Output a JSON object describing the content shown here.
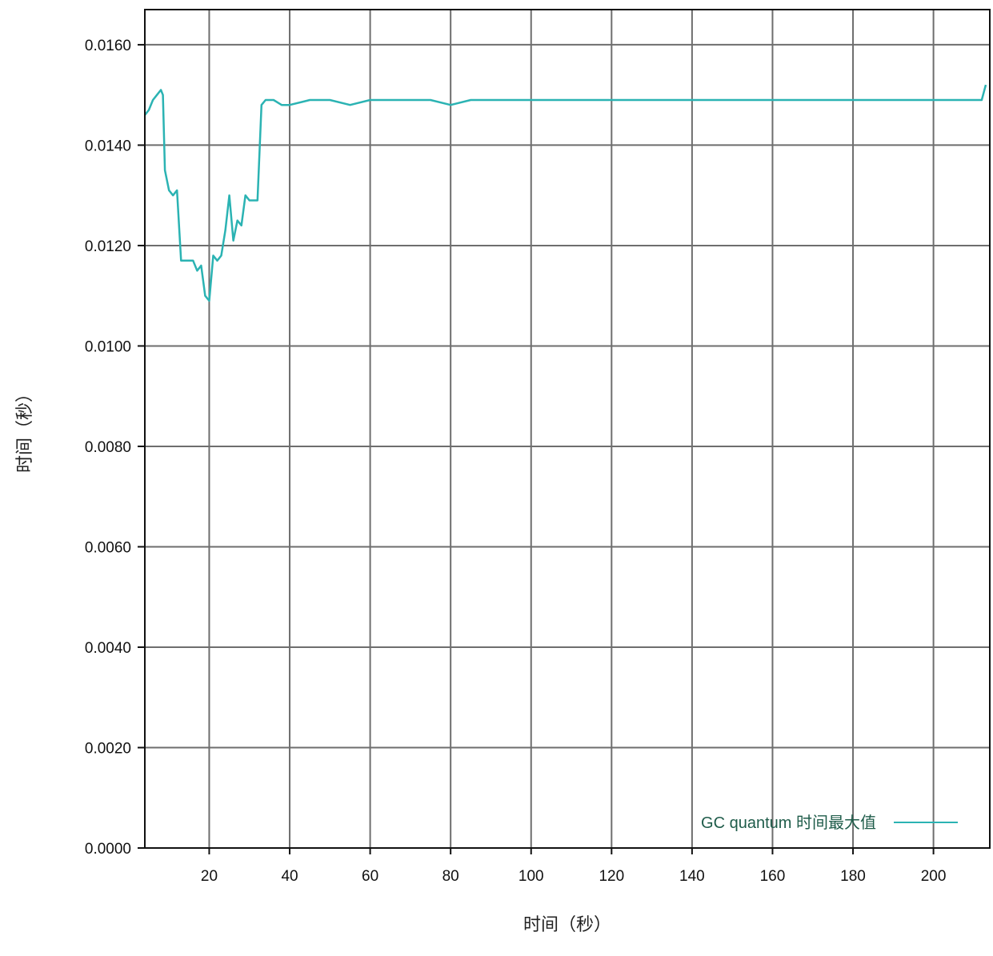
{
  "chart_data": {
    "type": "line",
    "title": "",
    "xlabel": "时间（秒）",
    "ylabel": "时间（秒）",
    "xlim": [
      4,
      214
    ],
    "ylim": [
      0,
      0.0167
    ],
    "x_ticks": [
      20,
      40,
      60,
      80,
      100,
      120,
      140,
      160,
      180,
      200
    ],
    "x_tick_labels": [
      "20",
      "40",
      "60",
      "80",
      "100",
      "120",
      "140",
      "160",
      "180",
      "200"
    ],
    "y_ticks": [
      0,
      0.002,
      0.004,
      0.006,
      0.008,
      0.01,
      0.012,
      0.014,
      0.016
    ],
    "y_tick_labels": [
      "0.0000",
      "0.0020",
      "0.0040",
      "0.0060",
      "0.0080",
      "0.0100",
      "0.0120",
      "0.0140",
      "0.0160"
    ],
    "grid": true,
    "legend_position": "bottom-right",
    "series": [
      {
        "name": "GC quantum 时间最大值",
        "color": "#2bb3b3",
        "x": [
          4,
          5,
          6,
          7,
          8,
          8.5,
          9,
          10,
          11,
          12,
          13,
          14,
          15,
          16,
          17,
          18,
          19,
          20,
          21,
          22,
          23,
          24,
          25,
          26,
          27,
          28,
          29,
          30,
          31,
          32,
          33,
          34,
          36,
          38,
          40,
          45,
          50,
          55,
          60,
          65,
          70,
          75,
          80,
          85,
          90,
          100,
          110,
          120,
          130,
          140,
          150,
          160,
          170,
          180,
          190,
          200,
          205,
          210,
          212,
          213
        ],
        "values": [
          0.0146,
          0.0147,
          0.0149,
          0.015,
          0.0151,
          0.015,
          0.0135,
          0.0131,
          0.013,
          0.0131,
          0.0117,
          0.0117,
          0.0117,
          0.0117,
          0.0115,
          0.0116,
          0.011,
          0.0109,
          0.0118,
          0.0117,
          0.0118,
          0.0123,
          0.013,
          0.0121,
          0.0125,
          0.0124,
          0.013,
          0.0129,
          0.0129,
          0.0129,
          0.0148,
          0.0149,
          0.0149,
          0.0148,
          0.0148,
          0.0149,
          0.0149,
          0.0148,
          0.0149,
          0.0149,
          0.0149,
          0.0149,
          0.0148,
          0.0149,
          0.0149,
          0.0149,
          0.0149,
          0.0149,
          0.0149,
          0.0149,
          0.0149,
          0.0149,
          0.0149,
          0.0149,
          0.0149,
          0.0149,
          0.0149,
          0.0149,
          0.0149,
          0.0152
        ]
      }
    ]
  }
}
